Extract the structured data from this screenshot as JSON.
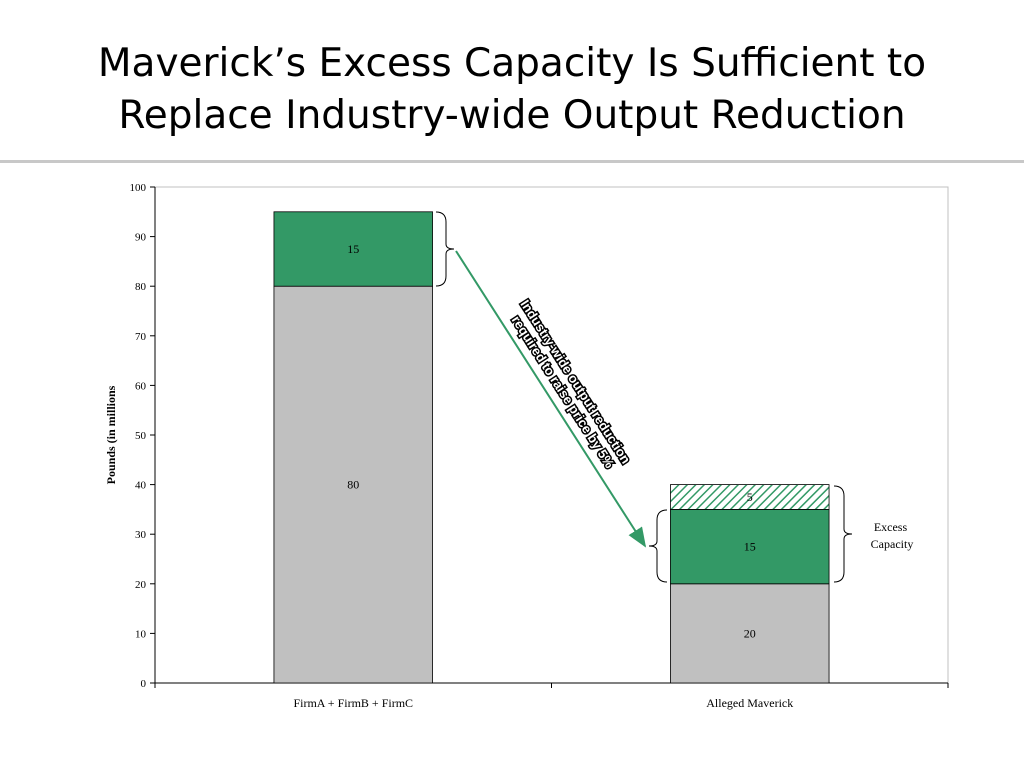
{
  "slide": {
    "title_line1": "Maverick’s Excess Capacity Is Sufficient to",
    "title_line2": "Replace Industry-wide Output Reduction"
  },
  "chart_data": {
    "type": "bar",
    "stacked": true,
    "categories": [
      "FirmA + FirmB + FirmC",
      "Alleged Maverick"
    ],
    "series": [
      {
        "name": "",
        "values": [
          80,
          20
        ],
        "color": "#c0c0c0"
      },
      {
        "name": "",
        "values": [
          15,
          15
        ],
        "color": "#339966"
      },
      {
        "name": "",
        "values": [
          0,
          5
        ],
        "color": "#339966",
        "pattern": "diagonal-hatch"
      }
    ],
    "data_labels": [
      [
        "80",
        "15",
        ""
      ],
      [
        "20",
        "15",
        "5"
      ]
    ],
    "ylabel": "Pounds (in millions",
    "xlabel": "",
    "ylim": [
      0,
      100
    ],
    "yticks": [
      0,
      10,
      20,
      30,
      40,
      50,
      60,
      70,
      80,
      90,
      100
    ],
    "grid": false,
    "annotations": {
      "arrow_label_line1": "Industry-wide output reduction",
      "arrow_label_line2": "required  to raise price by 5%",
      "excess_line1": "Excess",
      "excess_line2": "Capacity"
    }
  }
}
